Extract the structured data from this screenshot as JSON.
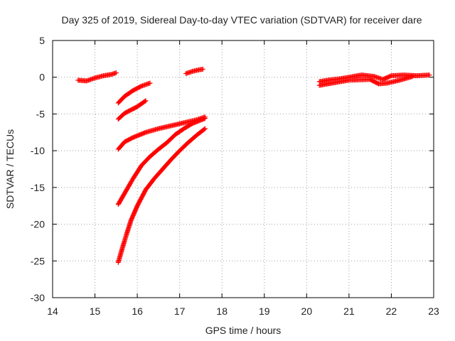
{
  "chart_data": {
    "type": "scatter",
    "title": "Day 325 of 2019, Sidereal Day-to-day VTEC variation (SDTVAR) for receiver dare",
    "xlabel": "GPS time / hours",
    "ylabel": "SDTVAR / TECUs",
    "xlim": [
      14,
      23
    ],
    "ylim": [
      -30,
      5
    ],
    "xticks": [
      "14",
      "15",
      "16",
      "17",
      "18",
      "19",
      "20",
      "21",
      "22",
      "23"
    ],
    "yticks": [
      "5",
      "0",
      "-5",
      "-10",
      "-15",
      "-20",
      "-25",
      "-30"
    ],
    "grid": true,
    "marker_color": "#ff0000",
    "series": [
      {
        "points": [
          [
            14.6,
            -0.4
          ],
          [
            14.8,
            -0.5
          ],
          [
            15.0,
            -0.1
          ],
          [
            15.2,
            0.2
          ],
          [
            15.4,
            0.4
          ],
          [
            15.5,
            0.6
          ]
        ]
      },
      {
        "points": [
          [
            15.55,
            -3.5
          ],
          [
            15.7,
            -2.6
          ],
          [
            15.9,
            -1.8
          ],
          [
            16.1,
            -1.2
          ],
          [
            16.3,
            -0.8
          ]
        ]
      },
      {
        "points": [
          [
            15.55,
            -5.7
          ],
          [
            15.7,
            -4.9
          ],
          [
            15.9,
            -4.3
          ],
          [
            16.0,
            -4.0
          ],
          [
            16.2,
            -3.2
          ]
        ]
      },
      {
        "points": [
          [
            17.15,
            0.5
          ],
          [
            17.3,
            0.8
          ],
          [
            17.45,
            1.0
          ],
          [
            17.55,
            1.1
          ]
        ]
      },
      {
        "points": [
          [
            15.55,
            -9.8
          ],
          [
            15.7,
            -8.8
          ],
          [
            15.9,
            -8.2
          ],
          [
            16.2,
            -7.5
          ],
          [
            16.5,
            -7.0
          ],
          [
            16.8,
            -6.6
          ],
          [
            17.1,
            -6.2
          ],
          [
            17.4,
            -5.8
          ],
          [
            17.6,
            -5.4
          ]
        ]
      },
      {
        "points": [
          [
            15.55,
            -17.3
          ],
          [
            15.7,
            -15.8
          ],
          [
            15.9,
            -13.8
          ],
          [
            16.1,
            -12.0
          ],
          [
            16.3,
            -10.8
          ],
          [
            16.5,
            -9.8
          ],
          [
            16.7,
            -8.9
          ],
          [
            16.9,
            -7.8
          ],
          [
            17.1,
            -7.0
          ],
          [
            17.3,
            -6.3
          ],
          [
            17.6,
            -5.6
          ]
        ]
      },
      {
        "points": [
          [
            15.55,
            -25.2
          ],
          [
            15.65,
            -23.2
          ],
          [
            15.75,
            -21.3
          ],
          [
            15.85,
            -19.5
          ],
          [
            16.0,
            -17.5
          ],
          [
            16.2,
            -15.3
          ],
          [
            16.4,
            -13.8
          ],
          [
            16.6,
            -12.5
          ],
          [
            16.8,
            -11.2
          ],
          [
            17.0,
            -10.0
          ],
          [
            17.2,
            -8.9
          ],
          [
            17.4,
            -7.9
          ],
          [
            17.6,
            -7.0
          ]
        ]
      },
      {
        "points": [
          [
            20.3,
            -0.6
          ],
          [
            20.5,
            -0.4
          ],
          [
            20.8,
            -0.2
          ],
          [
            21.0,
            0.0
          ],
          [
            21.3,
            0.3
          ],
          [
            21.6,
            0.1
          ],
          [
            21.8,
            -0.3
          ],
          [
            22.0,
            0.2
          ],
          [
            22.3,
            0.3
          ],
          [
            22.6,
            0.2
          ],
          [
            22.9,
            0.3
          ]
        ]
      },
      {
        "points": [
          [
            20.3,
            -1.1
          ],
          [
            20.6,
            -0.8
          ],
          [
            21.0,
            -0.4
          ],
          [
            21.5,
            -0.3
          ],
          [
            21.7,
            -0.9
          ],
          [
            21.9,
            -0.8
          ],
          [
            22.2,
            -0.4
          ],
          [
            22.5,
            0.1
          ]
        ]
      }
    ]
  }
}
